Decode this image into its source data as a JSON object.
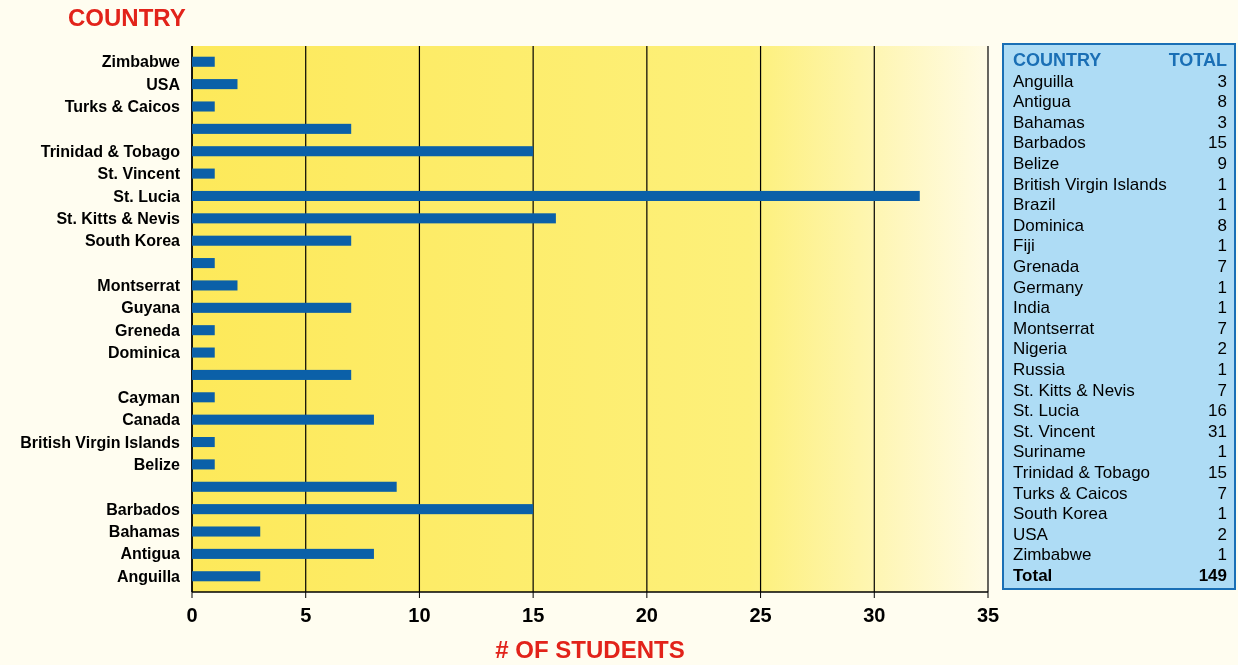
{
  "chart_data": [
    {
      "type": "bar",
      "orientation": "horizontal",
      "ylabel": "COUNTRY",
      "xlabel": "# OF STUDENTS",
      "categories": [
        "Zimbabwe",
        "USA",
        "Turks & Caicos",
        null,
        "Trinidad & Tobago",
        "St. Vincent",
        "St. Lucia",
        "St. Kitts & Nevis",
        "South Korea",
        null,
        "Montserrat",
        "Guyana",
        "Greneda",
        "Dominica",
        null,
        "Cayman",
        "Canada",
        "British Virgin Islands",
        "Belize",
        null,
        "Barbados",
        "Bahamas",
        "Antigua",
        "Anguilla"
      ],
      "values": [
        1,
        2,
        1,
        7,
        15,
        1,
        32,
        16,
        7,
        1,
        2,
        7,
        1,
        1,
        7,
        1,
        8,
        1,
        1,
        9,
        15,
        3,
        8,
        3
      ],
      "color": "#0b60a8",
      "xlim": [
        0,
        35
      ],
      "xticks": [
        0,
        5,
        10,
        15,
        20,
        25,
        30,
        35
      ],
      "grid": "x"
    },
    {
      "type": "other",
      "xlabel": "COUNTRY",
      "ylabel": "TOTAL",
      "categories": [
        "Anguilla",
        "Antigua",
        "Bahamas",
        "Barbados",
        "Belize",
        "British Virgin Islands",
        "Brazil",
        "Dominica",
        "Fiji",
        "Grenada",
        "Germany",
        "India",
        "Montserrat",
        "Nigeria",
        "Russia",
        "St. Kitts & Nevis",
        "St. Lucia",
        "St. Vincent",
        "Suriname",
        "Trinidad & Tobago",
        "Turks & Caicos",
        "South Korea",
        "USA",
        "Zimbabwe"
      ],
      "values": [
        3,
        8,
        3,
        15,
        9,
        1,
        1,
        8,
        1,
        7,
        1,
        1,
        7,
        2,
        1,
        7,
        16,
        31,
        1,
        15,
        7,
        1,
        2,
        1
      ],
      "data_labels": true,
      "annotations": [
        "Total",
        "149"
      ]
    }
  ]
}
